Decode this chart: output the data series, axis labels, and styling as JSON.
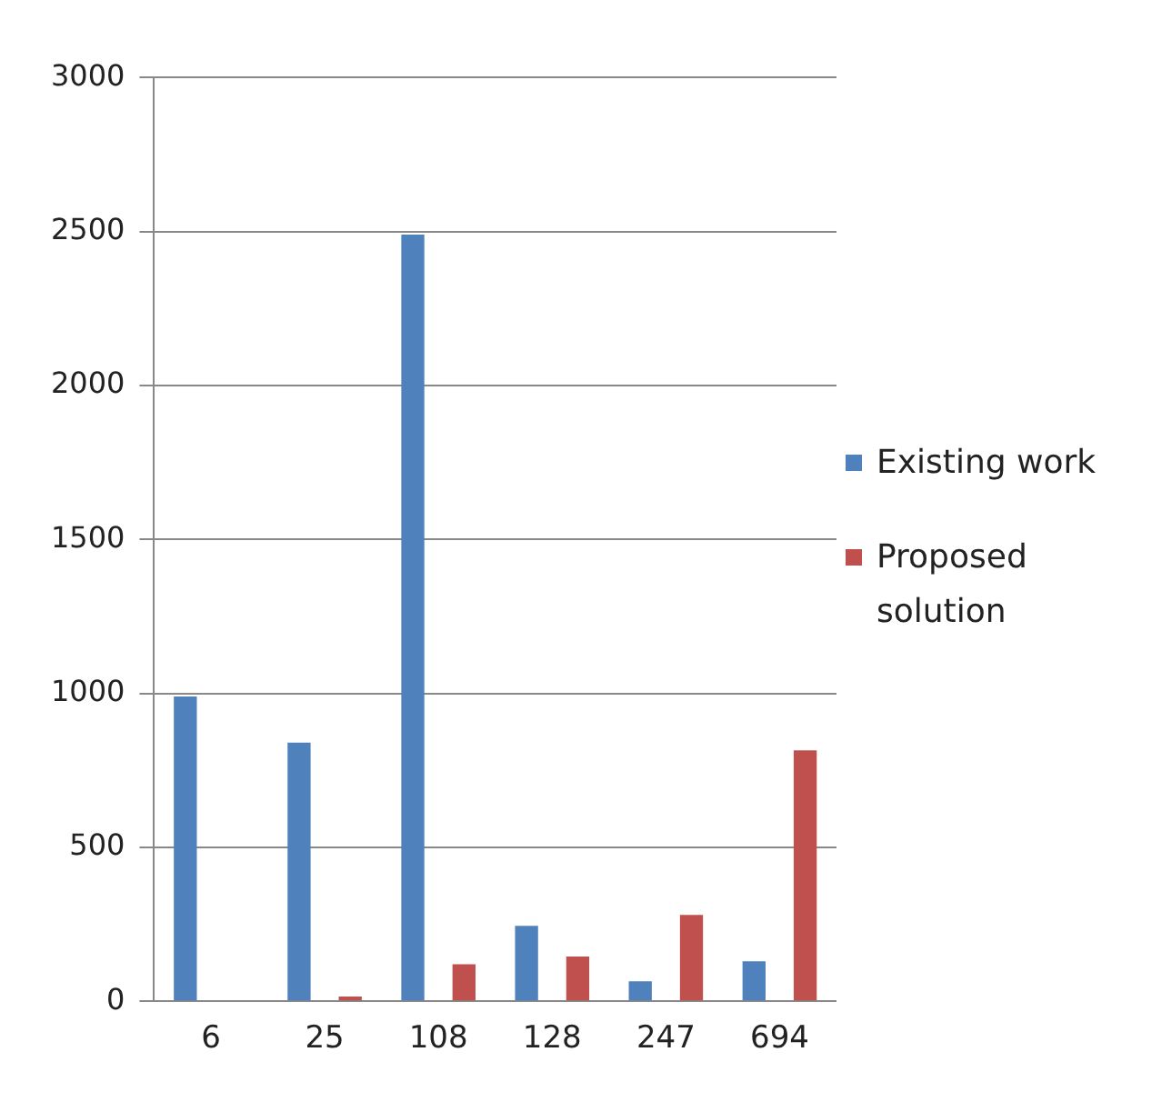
{
  "chart_data": {
    "type": "bar",
    "categories": [
      "6",
      "25",
      "108",
      "128",
      "247",
      "694"
    ],
    "series": [
      {
        "name": "Existing work",
        "color": "#4f81bd",
        "values": [
          990,
          840,
          2490,
          245,
          65,
          130
        ]
      },
      {
        "name": "Proposed solution",
        "color": "#c0504d",
        "values": [
          0,
          15,
          120,
          145,
          280,
          815
        ]
      }
    ],
    "ylim": [
      0,
      3000
    ],
    "yticks": [
      0,
      500,
      1000,
      1500,
      2000,
      2500,
      3000
    ],
    "grid": "y",
    "legend": "right"
  }
}
